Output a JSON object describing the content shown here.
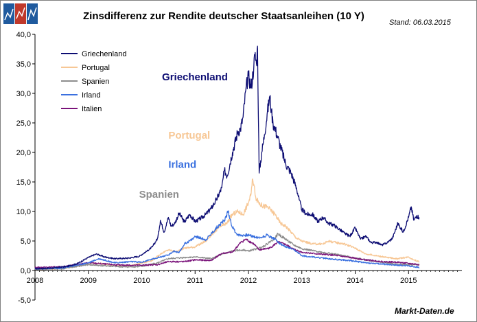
{
  "header": {
    "title": "Zinsdifferenz zur Rendite deutscher Staatsanleihen (10 Y)",
    "stand": "Stand: 06.03.2015",
    "footer": "Markt-Daten.de"
  },
  "colors": {
    "griechenland": "#0d0d73",
    "portugal": "#f7c795",
    "spanien": "#8c8c8c",
    "irland": "#3a70df",
    "italien": "#7a137a",
    "logo_blue": "#1f5a9e",
    "logo_red": "#c0392b"
  },
  "chart_data": {
    "type": "line",
    "title": "Zinsdifferenz zur Rendite deutscher Staatsanleihen (10 Y)",
    "xlabel": "",
    "ylabel": "",
    "xlim": [
      2008,
      2016.0
    ],
    "ylim": [
      -5,
      40
    ],
    "y_ticks": [
      -5,
      0,
      5,
      10,
      15,
      20,
      25,
      30,
      35,
      40
    ],
    "y_tick_labels": [
      "-5,0",
      "0,0",
      "5,0",
      "10,0",
      "15,0",
      "20,0",
      "25,0",
      "30,0",
      "35,0",
      "40,0"
    ],
    "x_ticks": [
      2008,
      2009,
      2010,
      2011,
      2012,
      2013,
      2014,
      2015
    ],
    "x_tick_labels": [
      "2008",
      "2009",
      "2010",
      "2011",
      "2012",
      "2013",
      "2014",
      "2015"
    ],
    "grid": false,
    "legend_position": "top-left",
    "series": [
      {
        "name": "Griechenland",
        "color": "#0d0d73",
        "label": "Griechenland",
        "x": [
          2008.0,
          2008.3,
          2008.6,
          2008.8,
          2009.0,
          2009.15,
          2009.3,
          2009.5,
          2009.75,
          2009.95,
          2010.1,
          2010.2,
          2010.3,
          2010.35,
          2010.42,
          2010.5,
          2010.55,
          2010.62,
          2010.7,
          2010.8,
          2010.9,
          2011.0,
          2011.1,
          2011.2,
          2011.3,
          2011.4,
          2011.5,
          2011.55,
          2011.6,
          2011.7,
          2011.8,
          2011.85,
          2011.9,
          2011.95,
          2012.0,
          2012.05,
          2012.1,
          2012.12,
          2012.15,
          2012.17,
          2012.2,
          2012.25,
          2012.3,
          2012.35,
          2012.4,
          2012.43,
          2012.46,
          2012.5,
          2012.55,
          2012.6,
          2012.7,
          2012.8,
          2012.9,
          2012.95,
          2013.0,
          2013.1,
          2013.2,
          2013.3,
          2013.4,
          2013.5,
          2013.6,
          2013.7,
          2013.8,
          2013.9,
          2014.0,
          2014.1,
          2014.2,
          2014.3,
          2014.4,
          2014.5,
          2014.6,
          2014.7,
          2014.8,
          2014.9,
          2015.0,
          2015.05,
          2015.1,
          2015.15,
          2015.2
        ],
        "values": [
          0.3,
          0.4,
          0.7,
          1.2,
          2.2,
          2.8,
          2.3,
          2.0,
          2.1,
          2.4,
          3.3,
          4.0,
          5.5,
          8.5,
          6.5,
          9.0,
          7.5,
          8.0,
          9.7,
          8.2,
          9.5,
          8.3,
          8.8,
          9.5,
          10.5,
          12.0,
          14.0,
          17.0,
          16.0,
          20.0,
          23.5,
          24.0,
          26.0,
          30.5,
          33.0,
          31.0,
          34.5,
          36.5,
          35.0,
          38.0,
          16.5,
          20.0,
          23.0,
          26.5,
          29.5,
          27.0,
          25.0,
          24.0,
          22.5,
          21.0,
          18.0,
          16.5,
          14.0,
          12.0,
          10.3,
          9.5,
          9.5,
          8.3,
          9.0,
          8.0,
          7.7,
          7.0,
          6.3,
          5.8,
          7.2,
          5.3,
          5.8,
          4.7,
          4.8,
          4.3,
          4.7,
          5.5,
          8.0,
          6.5,
          9.0,
          10.8,
          8.5,
          9.3,
          9.0
        ]
      },
      {
        "name": "Portugal",
        "color": "#f7c795",
        "label": "Portugal",
        "x": [
          2008.0,
          2008.5,
          2008.8,
          2009.0,
          2009.2,
          2009.5,
          2009.8,
          2010.0,
          2010.2,
          2010.35,
          2010.5,
          2010.65,
          2010.8,
          2011.0,
          2011.2,
          2011.3,
          2011.45,
          2011.6,
          2011.7,
          2011.8,
          2011.9,
          2012.0,
          2012.05,
          2012.08,
          2012.15,
          2012.25,
          2012.35,
          2012.5,
          2012.6,
          2012.7,
          2012.8,
          2012.9,
          2013.0,
          2013.2,
          2013.4,
          2013.5,
          2013.6,
          2013.8,
          2014.0,
          2014.2,
          2014.4,
          2014.6,
          2014.8,
          2015.0,
          2015.1,
          2015.2
        ],
        "values": [
          0.2,
          0.3,
          0.8,
          1.3,
          1.2,
          0.9,
          0.8,
          1.3,
          1.7,
          2.8,
          3.5,
          3.2,
          3.8,
          4.0,
          5.0,
          6.0,
          7.3,
          8.0,
          9.5,
          10.0,
          9.5,
          11.5,
          13.0,
          15.5,
          12.0,
          11.0,
          10.8,
          9.5,
          8.0,
          7.5,
          6.5,
          5.5,
          5.0,
          4.5,
          4.5,
          5.0,
          4.8,
          4.5,
          3.8,
          2.8,
          2.5,
          2.2,
          2.0,
          2.3,
          1.8,
          1.5
        ]
      },
      {
        "name": "Spanien",
        "color": "#8c8c8c",
        "label": "Spanien",
        "x": [
          2008.0,
          2008.5,
          2009.0,
          2009.3,
          2009.7,
          2010.0,
          2010.3,
          2010.5,
          2010.8,
          2011.0,
          2011.3,
          2011.5,
          2011.7,
          2011.9,
          2012.0,
          2012.2,
          2012.3,
          2012.5,
          2012.55,
          2012.7,
          2012.85,
          2013.0,
          2013.3,
          2013.6,
          2013.9,
          2014.2,
          2014.5,
          2014.8,
          2015.0,
          2015.2
        ],
        "values": [
          0.2,
          0.3,
          1.0,
          0.8,
          0.6,
          0.7,
          1.3,
          2.0,
          2.2,
          2.3,
          2.0,
          2.7,
          3.3,
          3.5,
          3.3,
          3.8,
          4.2,
          5.5,
          6.2,
          5.3,
          4.3,
          3.7,
          3.2,
          2.8,
          2.3,
          1.8,
          1.4,
          1.0,
          1.0,
          1.0
        ]
      },
      {
        "name": "Irland",
        "color": "#3a70df",
        "label": "Irland",
        "x": [
          2008.0,
          2008.5,
          2009.0,
          2009.2,
          2009.5,
          2009.8,
          2010.0,
          2010.3,
          2010.5,
          2010.6,
          2010.7,
          2010.8,
          2010.95,
          2011.0,
          2011.2,
          2011.3,
          2011.45,
          2011.55,
          2011.62,
          2011.7,
          2011.8,
          2011.9,
          2012.0,
          2012.2,
          2012.35,
          2012.5,
          2012.6,
          2012.7,
          2012.8,
          2012.9,
          2013.0,
          2013.3,
          2013.6,
          2013.9,
          2014.2,
          2014.5,
          2014.8,
          2015.0,
          2015.2
        ],
        "values": [
          0.3,
          0.4,
          1.3,
          2.0,
          1.3,
          1.5,
          1.4,
          2.2,
          2.6,
          3.3,
          3.0,
          4.5,
          5.3,
          5.8,
          5.2,
          6.2,
          7.7,
          8.5,
          10.0,
          7.3,
          6.0,
          6.0,
          6.0,
          5.5,
          6.0,
          5.3,
          4.5,
          4.0,
          3.7,
          3.2,
          2.5,
          2.2,
          1.9,
          1.7,
          1.3,
          1.1,
          0.9,
          0.8,
          0.5
        ]
      },
      {
        "name": "Italien",
        "color": "#7a137a",
        "label": "Italien",
        "x": [
          2008.0,
          2008.5,
          2009.0,
          2009.3,
          2009.6,
          2010.0,
          2010.3,
          2010.5,
          2010.8,
          2011.0,
          2011.3,
          2011.5,
          2011.7,
          2011.85,
          2011.95,
          2012.1,
          2012.2,
          2012.4,
          2012.55,
          2012.7,
          2012.85,
          2013.0,
          2013.3,
          2013.6,
          2013.9,
          2014.2,
          2014.5,
          2014.8,
          2015.0,
          2015.2
        ],
        "values": [
          0.5,
          0.6,
          1.3,
          1.1,
          0.9,
          0.9,
          1.0,
          1.5,
          1.5,
          1.8,
          1.7,
          2.9,
          3.1,
          4.7,
          5.3,
          4.5,
          3.5,
          3.8,
          4.8,
          4.4,
          3.6,
          3.1,
          2.8,
          2.6,
          2.2,
          1.8,
          1.5,
          1.4,
          1.2,
          1.0
        ]
      }
    ],
    "annotations": [
      {
        "text": "Griechenland",
        "x": 2010.38,
        "y": 32.2,
        "color": "#0d0d73"
      },
      {
        "text": "Portugal",
        "x": 2010.5,
        "y": 22.3,
        "color": "#f7c795"
      },
      {
        "text": "Irland",
        "x": 2010.5,
        "y": 17.4,
        "color": "#3a70df"
      },
      {
        "text": "Spanien",
        "x": 2009.95,
        "y": 12.3,
        "color": "#8c8c8c"
      }
    ]
  }
}
